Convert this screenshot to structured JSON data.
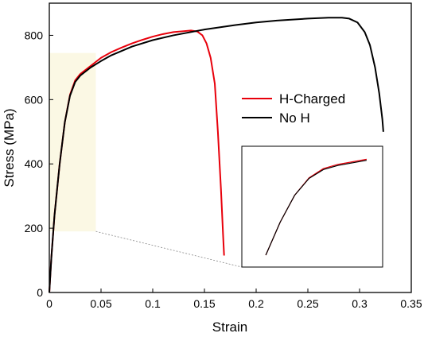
{
  "chart_data": {
    "type": "line",
    "xlabel": "Strain",
    "ylabel": "Stress (MPa)",
    "xlim": [
      0,
      0.35
    ],
    "ylim": [
      0,
      900
    ],
    "x_ticks": [
      0,
      0.05,
      0.1,
      0.15,
      0.2,
      0.25,
      0.3,
      0.35
    ],
    "x_tick_labels": [
      "0",
      "0.05",
      "0.1",
      "0.15",
      "0.2",
      "0.25",
      "0.3",
      "0.35"
    ],
    "y_ticks": [
      0,
      200,
      400,
      600,
      800
    ],
    "y_tick_labels": [
      "0",
      "200",
      "400",
      "600",
      "800"
    ],
    "grid": false,
    "legend_position": "right",
    "series": [
      {
        "name": "H-Charged",
        "color": "#e8000b",
        "points": [
          [
            0,
            0
          ],
          [
            0.002,
            110
          ],
          [
            0.005,
            240
          ],
          [
            0.01,
            400
          ],
          [
            0.015,
            530
          ],
          [
            0.02,
            615
          ],
          [
            0.025,
            660
          ],
          [
            0.03,
            680
          ],
          [
            0.04,
            705
          ],
          [
            0.05,
            730
          ],
          [
            0.06,
            748
          ],
          [
            0.07,
            762
          ],
          [
            0.08,
            775
          ],
          [
            0.09,
            786
          ],
          [
            0.1,
            796
          ],
          [
            0.11,
            804
          ],
          [
            0.12,
            810
          ],
          [
            0.13,
            813
          ],
          [
            0.137,
            815
          ],
          [
            0.143,
            812
          ],
          [
            0.148,
            800
          ],
          [
            0.152,
            775
          ],
          [
            0.156,
            730
          ],
          [
            0.16,
            650
          ],
          [
            0.163,
            500
          ],
          [
            0.166,
            320
          ],
          [
            0.168,
            180
          ],
          [
            0.169,
            115
          ]
        ]
      },
      {
        "name": "No H",
        "color": "#000000",
        "points": [
          [
            0,
            0
          ],
          [
            0.002,
            110
          ],
          [
            0.005,
            240
          ],
          [
            0.01,
            400
          ],
          [
            0.015,
            530
          ],
          [
            0.02,
            612
          ],
          [
            0.025,
            655
          ],
          [
            0.03,
            675
          ],
          [
            0.04,
            700
          ],
          [
            0.05,
            720
          ],
          [
            0.06,
            738
          ],
          [
            0.08,
            765
          ],
          [
            0.1,
            785
          ],
          [
            0.12,
            800
          ],
          [
            0.15,
            818
          ],
          [
            0.18,
            832
          ],
          [
            0.2,
            840
          ],
          [
            0.22,
            846
          ],
          [
            0.25,
            852
          ],
          [
            0.27,
            855
          ],
          [
            0.283,
            855
          ],
          [
            0.29,
            852
          ],
          [
            0.298,
            840
          ],
          [
            0.305,
            810
          ],
          [
            0.31,
            770
          ],
          [
            0.315,
            700
          ],
          [
            0.319,
            620
          ],
          [
            0.322,
            540
          ],
          [
            0.323,
            500
          ]
        ]
      }
    ],
    "inset": {
      "source_region": {
        "xlim": [
          0,
          0.045
        ],
        "ylim": [
          190,
          745
        ]
      },
      "fill_color": "#fbf8e4",
      "connector_color": "#888888"
    }
  }
}
